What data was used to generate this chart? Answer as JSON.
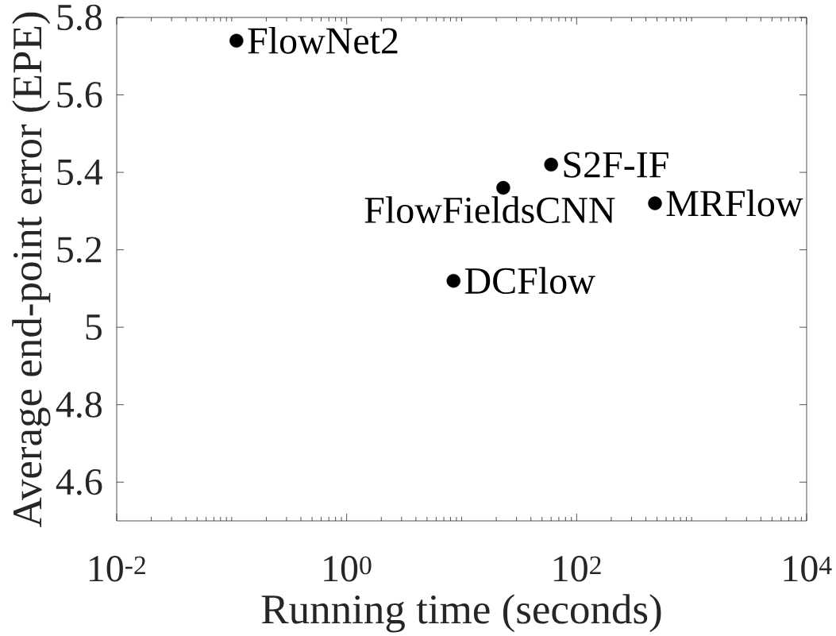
{
  "chart_data": {
    "type": "scatter",
    "xlabel": "Running time (seconds)",
    "ylabel": "Average end-point error (EPE)",
    "x": [
      0.11,
      8.5,
      23,
      60,
      480
    ],
    "values": [
      5.74,
      5.12,
      5.36,
      5.42,
      5.32
    ],
    "color": "#000000",
    "marker": "circle",
    "log": "x",
    "xlim": [
      0.01,
      10000
    ],
    "xticks": [
      {
        "value": 0.01,
        "label": "10$^{-2}$"
      },
      {
        "value": 1,
        "label": "10$^{0}$"
      },
      {
        "value": 100,
        "label": "10$^{2}$"
      },
      {
        "value": 10000,
        "label": "10$^{4}$"
      }
    ],
    "ylim": [
      4.5,
      5.8
    ],
    "yticks": [
      4.6,
      4.8,
      5,
      5.2,
      5.4,
      5.6,
      5.8
    ],
    "annotations": [
      {
        "text": "FlowNet2",
        "x": 0.11,
        "y": 5.74
      },
      {
        "text": "DCFlow",
        "x": 8.5,
        "y": 5.12
      },
      {
        "text": "FlowFieldsCNN",
        "x": 23,
        "y": 5.36
      },
      {
        "text": "S2F-IF",
        "x": 60,
        "y": 5.42
      },
      {
        "text": "MRFlow",
        "x": 480,
        "y": 5.32
      }
    ]
  }
}
